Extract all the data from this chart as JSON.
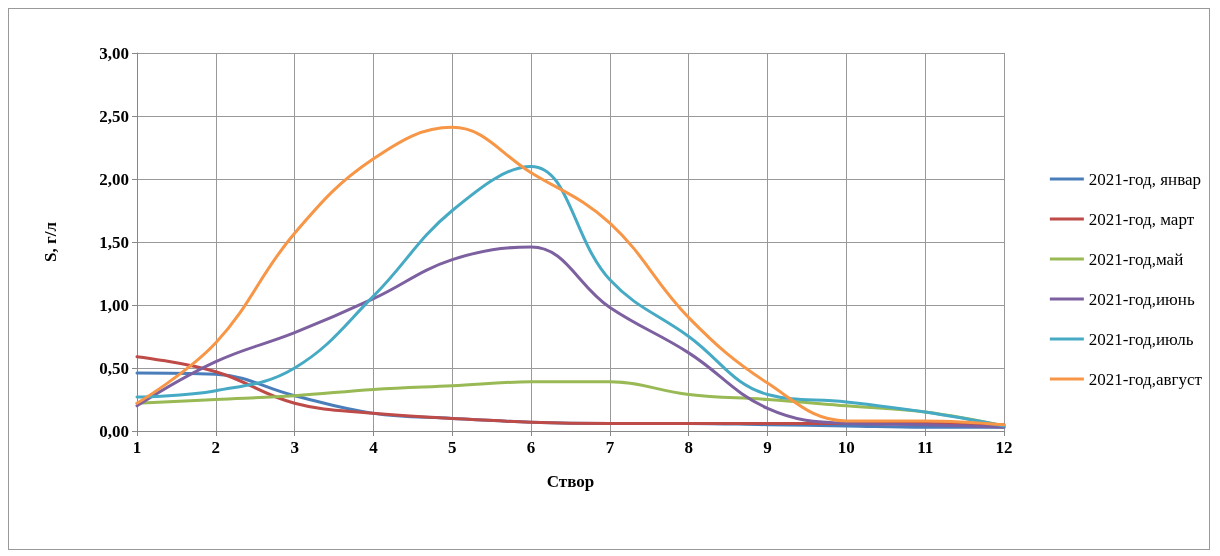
{
  "chart_data": {
    "type": "line",
    "xlabel": "Створ",
    "ylabel": "S, г/л",
    "x": [
      1,
      2,
      3,
      4,
      5,
      6,
      7,
      8,
      9,
      10,
      11,
      12
    ],
    "xlim": [
      1,
      12
    ],
    "xticks": [
      1,
      2,
      3,
      4,
      5,
      6,
      7,
      8,
      9,
      10,
      11,
      12
    ],
    "ylim": [
      0,
      3
    ],
    "yticks": [
      {
        "value": 0,
        "label": "0,00"
      },
      {
        "value": 0.5,
        "label": "0,50"
      },
      {
        "value": 1,
        "label": "1,00"
      },
      {
        "value": 1.5,
        "label": "1,50"
      },
      {
        "value": 2,
        "label": "2,00"
      },
      {
        "value": 2.5,
        "label": "2,50"
      },
      {
        "value": 3,
        "label": "3,00"
      }
    ],
    "grid": true,
    "legend": "right",
    "marker": "none",
    "line_style": "solid",
    "series": [
      {
        "name": "2021-год, январ",
        "color": "#4a7ebb",
        "values": [
          0.46,
          0.45,
          0.28,
          0.14,
          0.1,
          0.07,
          0.06,
          0.06,
          0.05,
          0.04,
          0.03,
          0.03
        ]
      },
      {
        "name": "2021-год, март",
        "color": "#be4b48",
        "values": [
          0.59,
          0.47,
          0.22,
          0.14,
          0.1,
          0.07,
          0.06,
          0.06,
          0.06,
          0.06,
          0.06,
          0.05
        ]
      },
      {
        "name": "2021-год,май",
        "color": "#98b954",
        "values": [
          0.22,
          0.25,
          0.28,
          0.33,
          0.36,
          0.39,
          0.39,
          0.29,
          0.25,
          0.2,
          0.15,
          0.04
        ]
      },
      {
        "name": "2021-год,июнь",
        "color": "#7d60a0",
        "values": [
          0.2,
          0.55,
          0.78,
          1.05,
          1.36,
          1.46,
          0.98,
          0.62,
          0.18,
          0.06,
          0.05,
          0.03
        ]
      },
      {
        "name": "2021-год,июль",
        "color": "#46aac5",
        "values": [
          0.27,
          0.32,
          0.5,
          1.07,
          1.75,
          2.1,
          1.2,
          0.75,
          0.29,
          0.23,
          0.15,
          0.04
        ]
      },
      {
        "name": "2021-год,август",
        "color": "#f79646",
        "values": [
          0.22,
          0.7,
          1.57,
          2.16,
          2.41,
          2.05,
          1.65,
          0.9,
          0.38,
          0.08,
          0.08,
          0.05
        ]
      }
    ]
  }
}
